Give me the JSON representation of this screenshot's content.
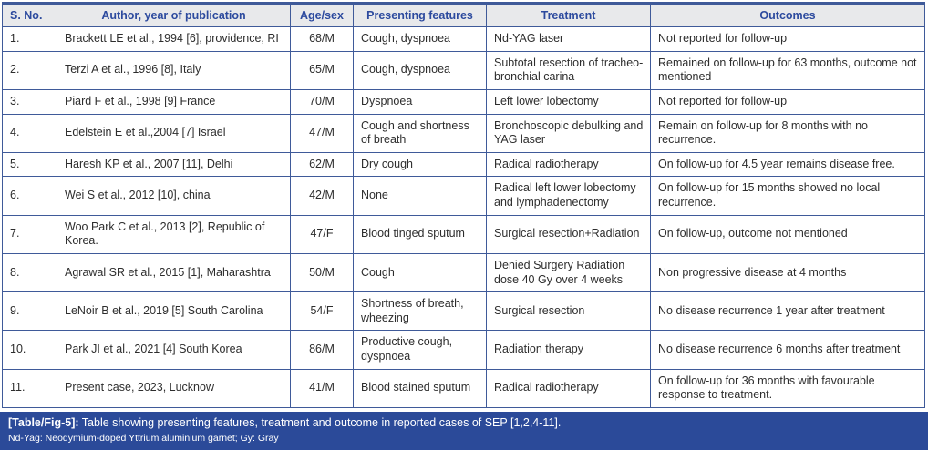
{
  "table": {
    "columns": [
      "S. No.",
      "Author, year of publication",
      "Age/sex",
      "Presenting features",
      "Treatment",
      "Outcomes"
    ],
    "rows": [
      [
        "1.",
        "Brackett LE et al., 1994 [6], providence, RI",
        "68/M",
        "Cough, dyspnoea",
        "Nd-YAG laser",
        "Not reported for follow-up"
      ],
      [
        "2.",
        "Terzi A et al., 1996 [8], Italy",
        "65/M",
        "Cough, dyspnoea",
        "Subtotal resection of tracheo-bronchial carina",
        "Remained on follow-up for 63 months, outcome not mentioned"
      ],
      [
        "3.",
        "Piard F et al., 1998 [9] France",
        "70/M",
        "Dyspnoea",
        "Left lower lobectomy",
        "Not reported for follow-up"
      ],
      [
        "4.",
        "Edelstein E et al.,2004 [7] Israel",
        "47/M",
        "Cough and shortness of breath",
        "Bronchoscopic debulking and YAG laser",
        "Remain on follow-up for 8 months with no recurrence."
      ],
      [
        "5.",
        "Haresh KP et al., 2007 [11], Delhi",
        "62/M",
        "Dry cough",
        "Radical radiotherapy",
        "On follow-up for 4.5 year remains disease free."
      ],
      [
        "6.",
        "Wei S et al., 2012 [10], china",
        "42/M",
        "None",
        "Radical left lower lobectomy and lymphadenectomy",
        "On follow-up for 15 months showed no local recurrence."
      ],
      [
        "7.",
        "Woo Park C et al., 2013 [2], Republic of Korea.",
        "47/F",
        "Blood tinged sputum",
        "Surgical resection+Radiation",
        "On follow-up, outcome not mentioned"
      ],
      [
        "8.",
        "Agrawal SR et al., 2015 [1], Maharashtra",
        "50/M",
        "Cough",
        "Denied Surgery Radiation dose 40 Gy over 4 weeks",
        "Non progressive disease at 4 months"
      ],
      [
        "9.",
        "LeNoir B et al., 2019 [5] South Carolina",
        "54/F",
        "Shortness of breath, wheezing",
        "Surgical resection",
        "No disease recurrence 1 year after treatment"
      ],
      [
        "10.",
        "Park JI et al., 2021 [4] South Korea",
        "86/M",
        "Productive cough, dyspnoea",
        "Radiation therapy",
        "No disease recurrence 6 months after treatment"
      ],
      [
        "11.",
        "Present case, 2023, Lucknow",
        "41/M",
        "Blood stained sputum",
        "Radical radiotherapy",
        "On follow-up for 36 months with favourable response to treatment."
      ]
    ]
  },
  "caption": {
    "label": "[Table/Fig-5]:",
    "text": "Table showing presenting features, treatment and outcome in reported cases of SEP [1,2,4-11].",
    "footnote": "Nd-Yag: Neodymium-doped Yttrium aluminium garnet; Gy: Gray"
  },
  "colors": {
    "border": "#3f5a99",
    "header_bg": "#e8e9eb",
    "header_text": "#2c4a9e",
    "caption_bg": "#2b4a99",
    "body_text": "#2d2d2d",
    "caption_text": "#ffffff"
  }
}
